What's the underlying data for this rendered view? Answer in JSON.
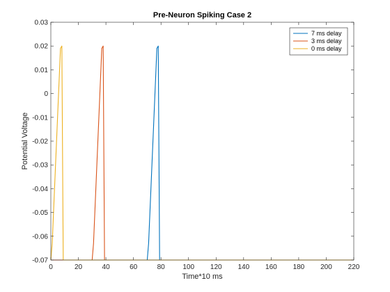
{
  "chart_data": {
    "type": "line",
    "title": "Pre-Neuron Spiking Case 2",
    "xlabel": "Time*10 ms",
    "ylabel": "Potential Voltage",
    "xlim": [
      0,
      220
    ],
    "ylim": [
      -0.07,
      0.03
    ],
    "xticks": [
      0,
      20,
      40,
      60,
      80,
      100,
      120,
      140,
      160,
      180,
      200,
      220
    ],
    "yticks": [
      -0.07,
      -0.06,
      -0.05,
      -0.04,
      -0.03,
      -0.02,
      -0.01,
      0,
      0.01,
      0.02,
      0.03
    ],
    "xtick_labels": [
      "0",
      "20",
      "40",
      "60",
      "80",
      "100",
      "120",
      "140",
      "160",
      "180",
      "200",
      "220"
    ],
    "ytick_labels": [
      "-0.07",
      "-0.06",
      "-0.05",
      "-0.04",
      "-0.03",
      "-0.02",
      "-0.01",
      "0",
      "0.01",
      "0.02",
      "0.03"
    ],
    "grid": false,
    "legend_position": "top-right",
    "series": [
      {
        "name": "7 ms delay",
        "color": "#0072BD",
        "x": [
          0,
          70,
          71,
          77,
          78,
          79,
          220
        ],
        "y": [
          -0.07,
          -0.07,
          -0.063,
          0.019,
          0.02,
          -0.07,
          -0.07
        ]
      },
      {
        "name": "3 ms delay",
        "color": "#D95319",
        "x": [
          0,
          30,
          31,
          37,
          38,
          39,
          220
        ],
        "y": [
          -0.07,
          -0.07,
          -0.063,
          0.019,
          0.02,
          -0.07,
          -0.07
        ]
      },
      {
        "name": "0 ms delay",
        "color": "#EDB120",
        "x": [
          0,
          1,
          7,
          8,
          9,
          220
        ],
        "y": [
          -0.07,
          -0.063,
          0.019,
          0.02,
          -0.07,
          -0.07
        ]
      }
    ]
  }
}
